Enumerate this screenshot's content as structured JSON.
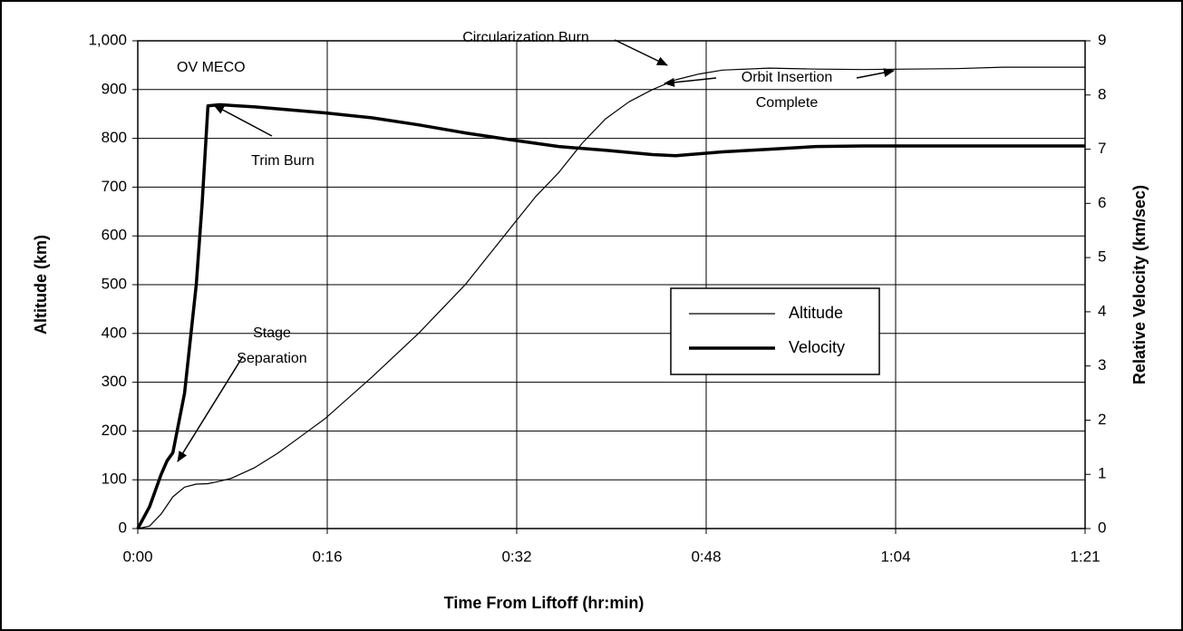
{
  "chart_data": {
    "type": "line",
    "xlabel": "Time From Liftoff (hr:min)",
    "ylabel": "Altitude (km)",
    "y2label": "Relative Velocity (km/sec)",
    "xlim": [
      0,
      81
    ],
    "xticks": [
      {
        "value": 0,
        "label": "0:00"
      },
      {
        "value": 16.2,
        "label": "0:16"
      },
      {
        "value": 32.4,
        "label": "0:32"
      },
      {
        "value": 48.6,
        "label": "0:48"
      },
      {
        "value": 64.8,
        "label": "1:04"
      },
      {
        "value": 81,
        "label": "1:21"
      }
    ],
    "ylim": [
      0,
      1000
    ],
    "yticks": [
      0,
      100,
      200,
      300,
      400,
      500,
      600,
      700,
      800,
      900,
      {
        "value": 1000,
        "label": "1,000"
      }
    ],
    "y2lim": [
      0,
      9
    ],
    "y2ticks": [
      0,
      1,
      2,
      3,
      4,
      5,
      6,
      7,
      8,
      9
    ],
    "grid": true,
    "series": [
      {
        "name": "Altitude",
        "color": "#000000",
        "x": [
          0,
          1,
          2,
          3,
          4,
          5,
          6,
          7,
          8,
          10,
          12,
          14,
          16,
          20,
          24,
          28,
          32,
          34,
          36,
          38,
          40,
          42,
          44,
          46,
          48,
          50,
          54,
          58,
          62,
          66,
          70,
          74,
          81
        ],
        "values": [
          0,
          5,
          30,
          65,
          85,
          91,
          92,
          97,
          103,
          125,
          155,
          190,
          225,
          310,
          400,
          500,
          620,
          680,
          730,
          790,
          840,
          875,
          900,
          920,
          932,
          940,
          944,
          942,
          941,
          942,
          943,
          946,
          946
        ]
      },
      {
        "name": "Velocity",
        "color": "#000000",
        "axis": "y2",
        "x": [
          0,
          1,
          2,
          2.5,
          3,
          4,
          5,
          5.5,
          6,
          7,
          10,
          16,
          20,
          24,
          28,
          32,
          36,
          40,
          44,
          46,
          50,
          54,
          58,
          62,
          70,
          81
        ],
        "values": [
          0,
          0.4,
          1.0,
          1.25,
          1.4,
          2.5,
          4.5,
          6.0,
          7.8,
          7.82,
          7.78,
          7.67,
          7.58,
          7.45,
          7.3,
          7.17,
          7.05,
          6.98,
          6.9,
          6.88,
          6.95,
          7.0,
          7.05,
          7.06,
          7.06,
          7.06
        ]
      }
    ],
    "legend": "center-right",
    "annotations": [
      {
        "lines": [
          "OV MECO"
        ]
      },
      {
        "lines": [
          "Trim Burn"
        ]
      },
      {
        "lines": [
          "Stage",
          "Separation"
        ]
      },
      {
        "lines": [
          "Circularization Burn"
        ]
      },
      {
        "lines": [
          "Orbit Insertion",
          "Complete"
        ]
      }
    ]
  }
}
